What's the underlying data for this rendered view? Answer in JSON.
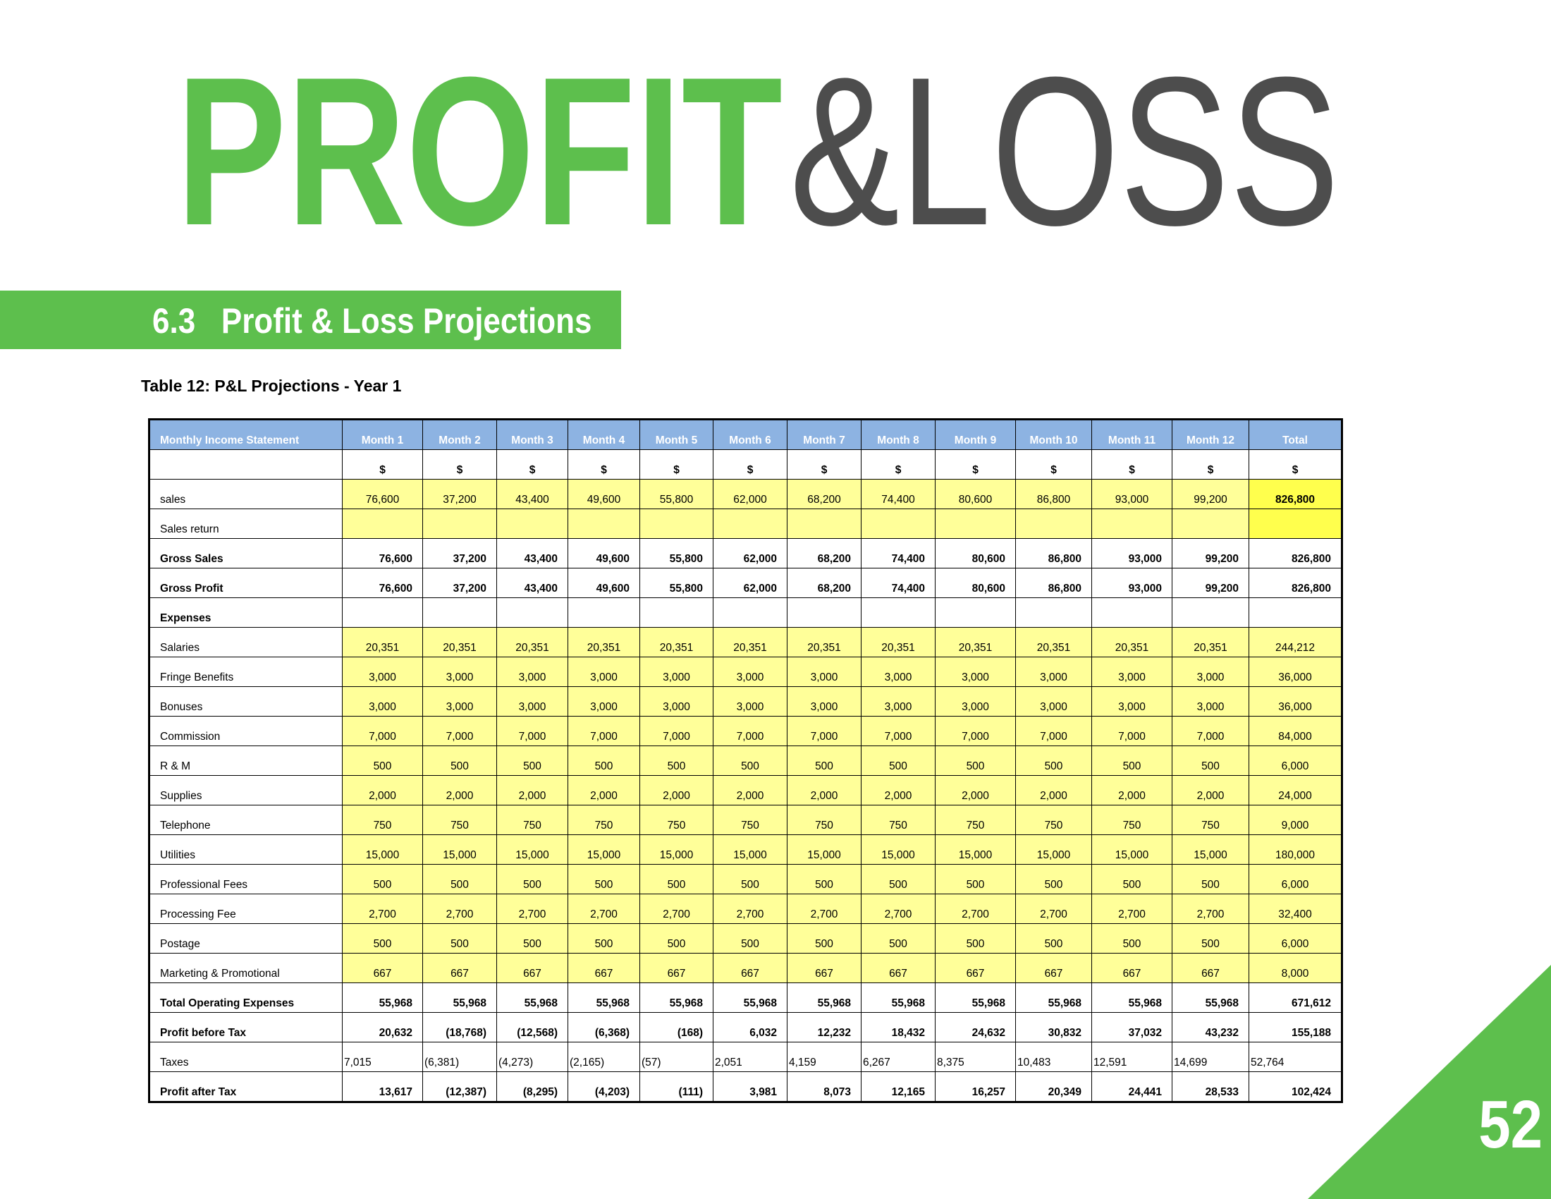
{
  "header": {
    "title_part1": "PROFIT",
    "title_part2": "&LOSS",
    "section": "6.3   Profit & Loss Projections"
  },
  "caption": "Table 12: P&L Projections - Year 1",
  "table": {
    "columns": [
      "Monthly Income Statement",
      "Month 1",
      "Month 2",
      "Month 3",
      "Month 4",
      "Month 5",
      "Month 6",
      "Month 7",
      "Month 8",
      "Month 9",
      "Month 10",
      "Month 11",
      "Month 12",
      "Total"
    ],
    "units": [
      "$",
      "$",
      "$",
      "$",
      "$",
      "$",
      "$",
      "$",
      "$",
      "$",
      "$",
      "$",
      "$"
    ],
    "rows": [
      [
        "sales",
        "76,600",
        "37,200",
        "43,400",
        "49,600",
        "55,800",
        "62,000",
        "68,200",
        "74,400",
        "80,600",
        "86,800",
        "93,000",
        "99,200",
        "826,800"
      ],
      [
        "Sales return"
      ],
      [
        "Gross Sales",
        "76,600",
        "37,200",
        "43,400",
        "49,600",
        "55,800",
        "62,000",
        "68,200",
        "74,400",
        "80,600",
        "86,800",
        "93,000",
        "99,200",
        "826,800"
      ],
      [
        "Gross Profit",
        "76,600",
        "37,200",
        "43,400",
        "49,600",
        "55,800",
        "62,000",
        "68,200",
        "74,400",
        "80,600",
        "86,800",
        "93,000",
        "99,200",
        "826,800"
      ],
      [
        "Expenses"
      ],
      [
        "Salaries",
        "20,351",
        "20,351",
        "20,351",
        "20,351",
        "20,351",
        "20,351",
        "20,351",
        "20,351",
        "20,351",
        "20,351",
        "20,351",
        "20,351",
        "244,212"
      ],
      [
        "Fringe Benefits",
        "3,000",
        "3,000",
        "3,000",
        "3,000",
        "3,000",
        "3,000",
        "3,000",
        "3,000",
        "3,000",
        "3,000",
        "3,000",
        "3,000",
        "36,000"
      ],
      [
        "Bonuses",
        "3,000",
        "3,000",
        "3,000",
        "3,000",
        "3,000",
        "3,000",
        "3,000",
        "3,000",
        "3,000",
        "3,000",
        "3,000",
        "3,000",
        "36,000"
      ],
      [
        "Commission",
        "7,000",
        "7,000",
        "7,000",
        "7,000",
        "7,000",
        "7,000",
        "7,000",
        "7,000",
        "7,000",
        "7,000",
        "7,000",
        "7,000",
        "84,000"
      ],
      [
        "R & M",
        "500",
        "500",
        "500",
        "500",
        "500",
        "500",
        "500",
        "500",
        "500",
        "500",
        "500",
        "500",
        "6,000"
      ],
      [
        "Supplies",
        "2,000",
        "2,000",
        "2,000",
        "2,000",
        "2,000",
        "2,000",
        "2,000",
        "2,000",
        "2,000",
        "2,000",
        "2,000",
        "2,000",
        "24,000"
      ],
      [
        "Telephone",
        "750",
        "750",
        "750",
        "750",
        "750",
        "750",
        "750",
        "750",
        "750",
        "750",
        "750",
        "750",
        "9,000"
      ],
      [
        "Utilities",
        "15,000",
        "15,000",
        "15,000",
        "15,000",
        "15,000",
        "15,000",
        "15,000",
        "15,000",
        "15,000",
        "15,000",
        "15,000",
        "15,000",
        "180,000"
      ],
      [
        "Professional Fees",
        "500",
        "500",
        "500",
        "500",
        "500",
        "500",
        "500",
        "500",
        "500",
        "500",
        "500",
        "500",
        "6,000"
      ],
      [
        "Processing Fee",
        "2,700",
        "2,700",
        "2,700",
        "2,700",
        "2,700",
        "2,700",
        "2,700",
        "2,700",
        "2,700",
        "2,700",
        "2,700",
        "2,700",
        "32,400"
      ],
      [
        "Postage",
        "500",
        "500",
        "500",
        "500",
        "500",
        "500",
        "500",
        "500",
        "500",
        "500",
        "500",
        "500",
        "6,000"
      ],
      [
        "Marketing & Promotional",
        "667",
        "667",
        "667",
        "667",
        "667",
        "667",
        "667",
        "667",
        "667",
        "667",
        "667",
        "667",
        "8,000"
      ],
      [
        "Total Operating Expenses",
        "55,968",
        "55,968",
        "55,968",
        "55,968",
        "55,968",
        "55,968",
        "55,968",
        "55,968",
        "55,968",
        "55,968",
        "55,968",
        "55,968",
        "671,612"
      ],
      [
        "Profit before Tax",
        "20,632",
        "(18,768)",
        "(12,568)",
        "(6,368)",
        "(168)",
        "6,032",
        "12,232",
        "18,432",
        "24,632",
        "30,832",
        "37,032",
        "43,232",
        "155,188"
      ],
      [
        "Taxes",
        "7,015",
        "(6,381)",
        "(4,273)",
        "(2,165)",
        "(57)",
        "2,051",
        "4,159",
        "6,267",
        "8,375",
        "10,483",
        "12,591",
        "14,699",
        "52,764"
      ],
      [
        "Profit after Tax",
        "13,617",
        "(12,387)",
        "(8,295)",
        "(4,203)",
        "(111)",
        "3,981",
        "8,073",
        "12,165",
        "16,257",
        "20,349",
        "24,441",
        "28,533",
        "102,424"
      ]
    ]
  },
  "page_number": "52"
}
